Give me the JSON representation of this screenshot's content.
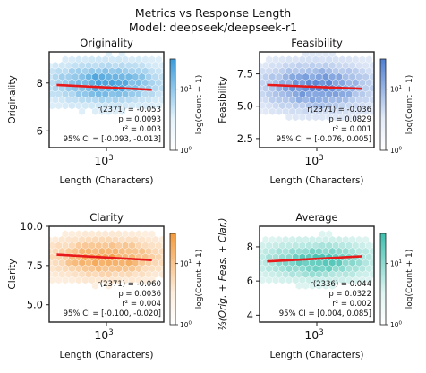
{
  "figure": {
    "title": "Metrics vs Response Length",
    "subtitle": "Model: deepseek/deepseek-r1"
  },
  "chart_data": [
    {
      "type": "heatmap",
      "subtype": "hexbin-scatter",
      "title": "Originality",
      "xlabel": "Length (Characters)",
      "ylabel": "Originality",
      "x_scale": "log",
      "x_ticks": [
        {
          "value": 1000,
          "label": "10",
          "exp": "3"
        }
      ],
      "ylim": [
        5.3,
        9.3
      ],
      "y_ticks": [
        6,
        8
      ],
      "trend": {
        "x": [
          300,
          3000
        ],
        "y": [
          7.92,
          7.72
        ]
      },
      "stats": [
        "r(2371) = -0.053",
        "p = 0.0093",
        "r² = 0.003",
        "95% CI = [-0.093, -0.013]"
      ],
      "colorbar": {
        "label": "log(Count + 1)",
        "ticks": [
          {
            "label": "10",
            "exp": "0"
          },
          {
            "label": "10",
            "exp": "1"
          }
        ]
      },
      "color": "#3a9bd9",
      "color_light": "#e4f3fc",
      "cloud": {
        "x_center": 1000,
        "y_center": 8.0,
        "x_spread": 0.55,
        "y_spread": 0.75
      },
      "grid": false,
      "legend": "none"
    },
    {
      "type": "heatmap",
      "subtype": "hexbin-scatter",
      "title": "Feasibility",
      "xlabel": "Length (Characters)",
      "ylabel": "Feasibility",
      "x_scale": "log",
      "x_ticks": [
        {
          "value": 1000,
          "label": "10",
          "exp": "3"
        }
      ],
      "ylim": [
        1.8,
        9.2
      ],
      "y_ticks": [
        2.5,
        5.0,
        7.5
      ],
      "trend": {
        "x": [
          300,
          3000
        ],
        "y": [
          6.65,
          6.35
        ]
      },
      "stats": [
        "r(2371) = -0.036",
        "p = 0.0829",
        "r² = 0.001",
        "95% CI = [-0.076, 0.005]"
      ],
      "colorbar": {
        "label": "log(Count + 1)",
        "ticks": [
          {
            "label": "10",
            "exp": "0"
          },
          {
            "label": "10",
            "exp": "1"
          }
        ]
      },
      "color": "#4f7fd1",
      "color_light": "#e3ebf8",
      "cloud": {
        "x_center": 1000,
        "y_center": 6.5,
        "x_spread": 0.55,
        "y_spread": 1.6
      },
      "grid": false,
      "legend": "none"
    },
    {
      "type": "heatmap",
      "subtype": "hexbin-scatter",
      "title": "Clarity",
      "xlabel": "Length (Characters)",
      "ylabel": "Clarity",
      "x_scale": "log",
      "x_ticks": [
        {
          "value": 1000,
          "label": "10",
          "exp": "3"
        }
      ],
      "ylim": [
        3.9,
        10.0
      ],
      "y_ticks": [
        5.0,
        7.5,
        10.0
      ],
      "trend": {
        "x": [
          300,
          3000
        ],
        "y": [
          8.2,
          7.85
        ]
      },
      "stats": [
        "r(2371) = -0.060",
        "p = 0.0036",
        "r² = 0.004",
        "95% CI = [-0.100, -0.020]"
      ],
      "colorbar": {
        "label": "log(Count + 1)",
        "ticks": [
          {
            "label": "10",
            "exp": "0"
          },
          {
            "label": "10",
            "exp": "1"
          }
        ]
      },
      "color": "#f39a3d",
      "color_light": "#fdeede",
      "cloud": {
        "x_center": 1000,
        "y_center": 8.0,
        "x_spread": 0.55,
        "y_spread": 1.1
      },
      "grid": false,
      "legend": "none"
    },
    {
      "type": "heatmap",
      "subtype": "hexbin-scatter",
      "title": "Average",
      "xlabel": "Length (Characters)",
      "ylabel": "⅓(Orig. + Feas. + Clar.)",
      "x_scale": "log",
      "x_ticks": [
        {
          "value": 1000,
          "label": "10",
          "exp": "3"
        }
      ],
      "ylim": [
        3.6,
        9.2
      ],
      "y_ticks": [
        4,
        6,
        8
      ],
      "trend": {
        "x": [
          300,
          3000
        ],
        "y": [
          7.15,
          7.45
        ]
      },
      "stats": [
        "r(2336) = 0.044",
        "p = 0.0322",
        "r² = 0.002",
        "95% CI = [0.004, 0.085]"
      ],
      "colorbar": {
        "label": "log(Count + 1)",
        "ticks": [
          {
            "label": "10",
            "exp": "0"
          },
          {
            "label": "10",
            "exp": "1"
          }
        ]
      },
      "color": "#3cbfae",
      "color_light": "#dff5f2",
      "cloud": {
        "x_center": 1000,
        "y_center": 7.2,
        "x_spread": 0.55,
        "y_spread": 0.95
      },
      "grid": false,
      "legend": "none"
    }
  ]
}
